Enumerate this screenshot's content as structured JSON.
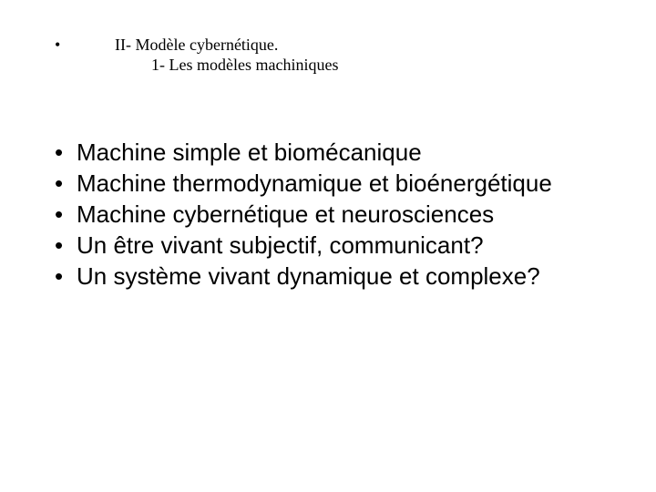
{
  "colors": {
    "background": "#ffffff",
    "text": "#000000"
  },
  "typography": {
    "header_font": "Times New Roman",
    "body_font": "Arial",
    "header_fontsize_pt": 14,
    "body_fontsize_pt": 20
  },
  "header": {
    "bullet": "•",
    "title": "II- Modèle cybernétique.",
    "subtitle": "1- Les modèles machiniques"
  },
  "body": {
    "bullet": "•",
    "items": [
      {
        "text": "Machine simple et biomécanique"
      },
      {
        "text": "Machine thermodynamique et bioénergétique"
      },
      {
        "text": "Machine cybernétique et neurosciences"
      },
      {
        "text": "Un être vivant subjectif, communicant?"
      },
      {
        "text": "Un système vivant dynamique et complexe?"
      }
    ]
  }
}
